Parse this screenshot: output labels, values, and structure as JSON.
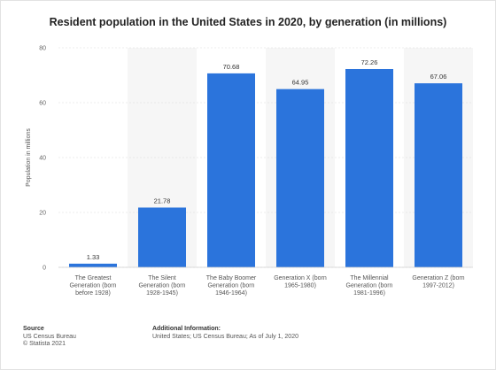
{
  "chart_data": {
    "type": "bar",
    "title": "Resident population in the United States in 2020, by generation (in millions)",
    "ylabel": "Population in millions",
    "xlabel": "",
    "ylim": [
      0,
      80
    ],
    "yticks": [
      "0",
      "20",
      "40",
      "60",
      "80"
    ],
    "categories": [
      [
        "The Greatest",
        "Generation (born",
        "before 1928)"
      ],
      [
        "The Silent",
        "Generation (born",
        "1928-1945)"
      ],
      [
        "The Baby Boomer",
        "Generation (born",
        "1946-1964)"
      ],
      [
        "Generation X (born",
        "1965-1980)"
      ],
      [
        "The Millennial",
        "Generation (born",
        "1981-1996)"
      ],
      [
        "Generation Z (born",
        "1997-2012)"
      ]
    ],
    "values": [
      1.33,
      21.78,
      70.68,
      64.95,
      72.26,
      67.06
    ],
    "value_labels": [
      "1.33",
      "21.78",
      "70.68",
      "64.95",
      "72.26",
      "67.06"
    ],
    "bar_color": "#2b74dc",
    "grid": true
  },
  "footer": {
    "source_heading": "Source",
    "source_line1": "US Census Bureau",
    "source_line2": "© Statista 2021",
    "info_heading": "Additional Information:",
    "info_text": "United States; US Census Bureau; As of July 1, 2020"
  }
}
